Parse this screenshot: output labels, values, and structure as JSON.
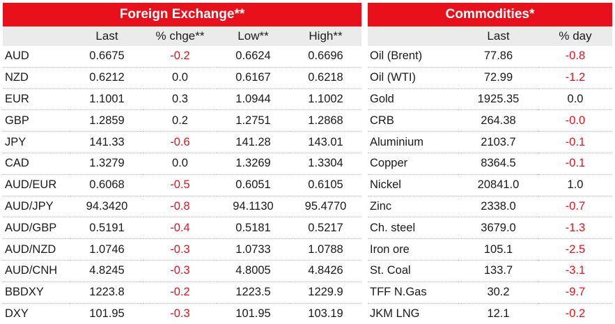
{
  "colors": {
    "accent": "#e8111b",
    "header_bg": "#ebebeb",
    "negative": "#e8111b"
  },
  "fx": {
    "title": "Foreign Exchange**",
    "headers": [
      "",
      "Last",
      "% chge**",
      "Low**",
      "High**"
    ],
    "rows": [
      [
        "AUD",
        "0.6675",
        "-0.2",
        "0.6624",
        "0.6696"
      ],
      [
        "NZD",
        "0.6212",
        "0.0",
        "0.6167",
        "0.6218"
      ],
      [
        "EUR",
        "1.1001",
        "0.3",
        "1.0944",
        "1.1002"
      ],
      [
        "GBP",
        "1.2859",
        "0.2",
        "1.2751",
        "1.2868"
      ],
      [
        "JPY",
        "141.33",
        "-0.6",
        "141.28",
        "143.01"
      ],
      [
        "CAD",
        "1.3279",
        "0.0",
        "1.3269",
        "1.3304"
      ],
      [
        "AUD/EUR",
        "0.6068",
        "-0.5",
        "0.6051",
        "0.6105"
      ],
      [
        "AUD/JPY",
        "94.3420",
        "-0.8",
        "94.1130",
        "95.4770"
      ],
      [
        "AUD/GBP",
        "0.5191",
        "-0.4",
        "0.5181",
        "0.5217"
      ],
      [
        "AUD/NZD",
        "1.0746",
        "-0.3",
        "1.0733",
        "1.0788"
      ],
      [
        "AUD/CNH",
        "4.8245",
        "-0.3",
        "4.8005",
        "4.8426"
      ],
      [
        "BBDXY",
        "1223.8",
        "-0.2",
        "1223.5",
        "1229.9"
      ],
      [
        "DXY",
        "101.95",
        "-0.3",
        "101.95",
        "103.19"
      ]
    ]
  },
  "commodities": {
    "title": "Commodities*",
    "headers": [
      "",
      "Last",
      "% day"
    ],
    "rows": [
      [
        "Oil (Brent)",
        "77.86",
        "-0.8"
      ],
      [
        "Oil (WTI)",
        "72.99",
        "-1.2"
      ],
      [
        "Gold",
        "1925.35",
        "0.0"
      ],
      [
        "CRB",
        "264.38",
        "-0.0"
      ],
      [
        "Aluminium",
        "2103.7",
        "-0.1"
      ],
      [
        "Copper",
        "8364.5",
        "-0.1"
      ],
      [
        "Nickel",
        "20841.0",
        "1.0"
      ],
      [
        "Zinc",
        "2338.0",
        "-0.7"
      ],
      [
        "Ch. steel",
        "3679.0",
        "-1.3"
      ],
      [
        "Iron ore",
        "105.1",
        "-2.5"
      ],
      [
        "St. Coal",
        "133.7",
        "-3.1"
      ],
      [
        "TFF N.Gas",
        "30.2",
        "-9.7"
      ],
      [
        "JKM LNG",
        "12.1",
        "-0.2"
      ]
    ]
  }
}
